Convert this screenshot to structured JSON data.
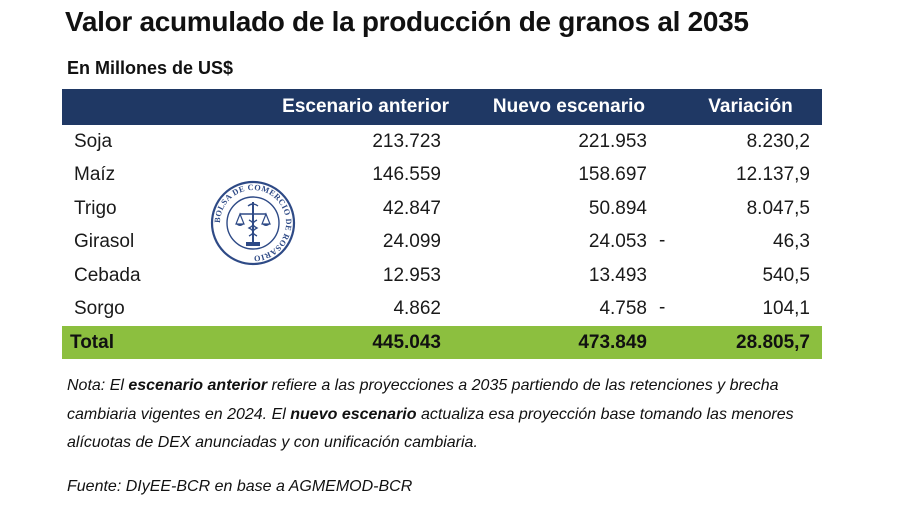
{
  "title": "Valor acumulado de la producción de granos al 2035",
  "subtitle": "En Millones de US$",
  "table": {
    "headers": [
      "",
      "Escenario anterior",
      "Nuevo escenario",
      "Variación"
    ],
    "rows": [
      {
        "name": "Soja",
        "anterior": "213.723",
        "nuevo": "221.953",
        "sign": "",
        "variacion": "8.230,2"
      },
      {
        "name": "Maíz",
        "anterior": "146.559",
        "nuevo": "158.697",
        "sign": "",
        "variacion": "12.137,9"
      },
      {
        "name": "Trigo",
        "anterior": "42.847",
        "nuevo": "50.894",
        "sign": "",
        "variacion": "8.047,5"
      },
      {
        "name": "Girasol",
        "anterior": "24.099",
        "nuevo": "24.053",
        "sign": "-",
        "variacion": "46,3"
      },
      {
        "name": "Cebada",
        "anterior": "12.953",
        "nuevo": "13.493",
        "sign": "",
        "variacion": "540,5"
      },
      {
        "name": "Sorgo",
        "anterior": "4.862",
        "nuevo": "4.758",
        "sign": "-",
        "variacion": "104,1"
      }
    ],
    "total": {
      "name": "Total",
      "anterior": "445.043",
      "nuevo": "473.849",
      "variacion": "28.805,7"
    }
  },
  "seal": {
    "text": "BOLSA DE COMERCIO DE ROSARIO",
    "icon": "bcr-seal-icon",
    "color": "#2e4a86"
  },
  "note": {
    "prefix": "Nota: El ",
    "bold1": "escenario anterior",
    "mid1": " refiere a las proyecciones a 2035 partiendo de las retenciones y brecha cambiaria vigentes en 2024. El ",
    "bold2": "nuevo escenario",
    "suffix": " actualiza esa proyección base tomando las menores alícuotas de DEX anunciadas y con unificación cambiaria."
  },
  "source": "Fuente: DIyEE-BCR en base a AGMEMOD-BCR",
  "colors": {
    "header_bg": "#1f3864",
    "total_bg": "#8cbf3f",
    "seal": "#2e4a86"
  }
}
